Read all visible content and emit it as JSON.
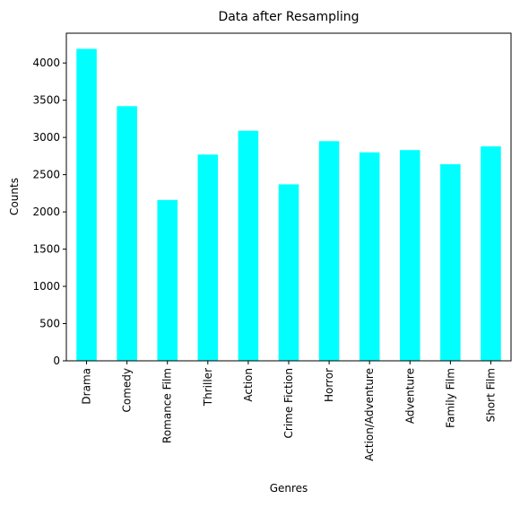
{
  "chart_data": {
    "type": "bar",
    "title": "Data after Resampling",
    "xlabel": "Genres",
    "ylabel": "Counts",
    "categories": [
      "Drama",
      "Comedy",
      "Romance Film",
      "Thriller",
      "Action",
      "Crime Fiction",
      "Horror",
      "Action/Adventure",
      "Adventure",
      "Family Film",
      "Short Film"
    ],
    "values": [
      4190,
      3420,
      2160,
      2770,
      3090,
      2370,
      2950,
      2800,
      2830,
      2640,
      2880
    ],
    "ylim": [
      0,
      4400
    ],
    "yticks": [
      0,
      500,
      1000,
      1500,
      2000,
      2500,
      3000,
      3500,
      4000
    ],
    "bar_color": "#00ffff",
    "grid": false,
    "legend": "none"
  }
}
